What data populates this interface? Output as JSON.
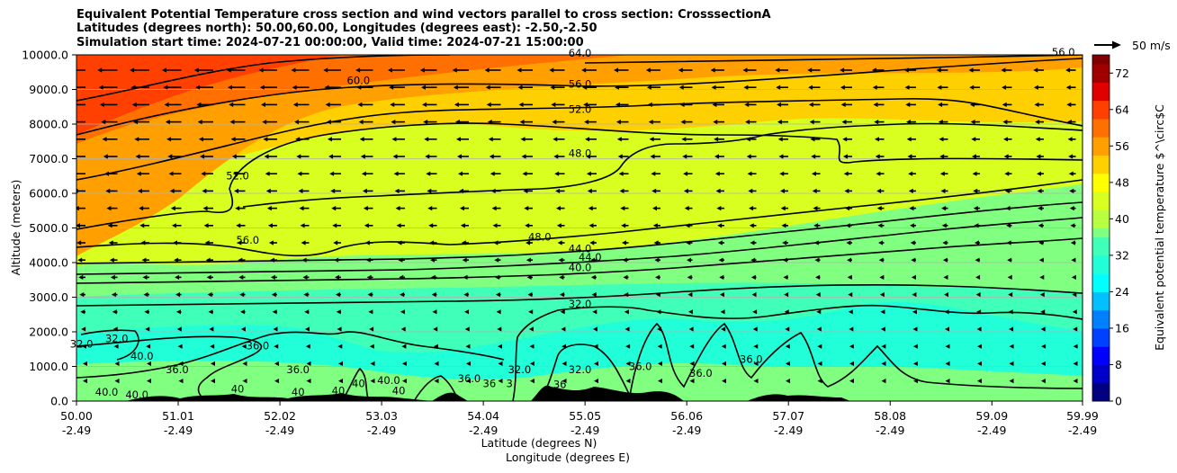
{
  "title_lines": [
    "Equivalent Potential Temperature cross section and wind vectors parallel to cross section: CrosssectionA",
    "Latitudes (degrees north): 50.00,60.00, Longitudes (degrees east): -2.50,-2.50",
    "Simulation start time: 2024-07-21 00:00:00, Valid time: 2024-07-21 15:00:00"
  ],
  "colors": {
    "scale": [
      "#000080",
      "#0000c8",
      "#0000ff",
      "#0040ff",
      "#0080ff",
      "#00c0ff",
      "#00ffff",
      "#20ffd8",
      "#40ffb8",
      "#80ff80",
      "#b8ff40",
      "#d8ff20",
      "#ffff00",
      "#ffd000",
      "#ffa000",
      "#ff7000",
      "#ff4000",
      "#e00000",
      "#a00000",
      "#800000"
    ],
    "contour": "#000000",
    "terrain": "#000000"
  },
  "chart_data": {
    "type": "contour cross section",
    "xlabel": "Latitude (degrees N)",
    "xlabel2": "Longitude (degrees E)",
    "ylabel": "Altitude (meters)",
    "xlim": [
      50.0,
      59.99
    ],
    "ylim": [
      0,
      10000
    ],
    "x_ticks": [
      {
        "lat": "50.00",
        "lon": "-2.49"
      },
      {
        "lat": "51.01",
        "lon": "-2.49"
      },
      {
        "lat": "52.02",
        "lon": "-2.49"
      },
      {
        "lat": "53.03",
        "lon": "-2.49"
      },
      {
        "lat": "54.04",
        "lon": "-2.49"
      },
      {
        "lat": "55.05",
        "lon": "-2.49"
      },
      {
        "lat": "56.06",
        "lon": "-2.49"
      },
      {
        "lat": "57.07",
        "lon": "-2.49"
      },
      {
        "lat": "58.08",
        "lon": "-2.49"
      },
      {
        "lat": "59.09",
        "lon": "-2.49"
      },
      {
        "lat": "59.99",
        "lon": "-2.49"
      }
    ],
    "y_ticks": [
      "0.0",
      "1000.0",
      "2000.0",
      "3000.0",
      "4000.0",
      "5000.0",
      "6000.0",
      "7000.0",
      "8000.0",
      "9000.0",
      "10000.0"
    ],
    "grid": "horizontal",
    "colorbar": {
      "label": "Equivalent potential temperature $^\\circ$C",
      "ticks": [
        "0",
        "8",
        "16",
        "24",
        "32",
        "40",
        "48",
        "56",
        "64",
        "72"
      ],
      "range": [
        0,
        76
      ]
    },
    "quiver_key": {
      "label": "50 m/s",
      "value": 50
    },
    "contour_labels": [
      {
        "text": "64.0",
        "lat": 55.0,
        "z": 9950
      },
      {
        "text": "60.0",
        "lat": 52.8,
        "z": 9150
      },
      {
        "text": "56.0",
        "lat": 55.0,
        "z": 9050
      },
      {
        "text": "52.0",
        "lat": 55.0,
        "z": 8330
      },
      {
        "text": "48.0",
        "lat": 55.0,
        "z": 7050
      },
      {
        "text": "52.0",
        "lat": 51.6,
        "z": 6400
      },
      {
        "text": "56.0",
        "lat": 51.7,
        "z": 4550
      },
      {
        "text": "48.0",
        "lat": 54.6,
        "z": 4630
      },
      {
        "text": "44.0",
        "lat": 55.0,
        "z": 4300
      },
      {
        "text": "44.0",
        "lat": 55.1,
        "z": 4050
      },
      {
        "text": "40.0",
        "lat": 55.0,
        "z": 3750
      },
      {
        "text": "32.0",
        "lat": 55.0,
        "z": 2700
      },
      {
        "text": "56.0",
        "lat": 59.8,
        "z": 9980
      },
      {
        "text": "32.0",
        "lat": 50.05,
        "z": 1550
      },
      {
        "text": "32.0",
        "lat": 50.4,
        "z": 1700
      },
      {
        "text": "40.0",
        "lat": 50.65,
        "z": 1200
      },
      {
        "text": "36.0",
        "lat": 51.0,
        "z": 800
      },
      {
        "text": "36.0",
        "lat": 51.8,
        "z": 1500
      },
      {
        "text": "36.0",
        "lat": 52.2,
        "z": 800
      },
      {
        "text": "40.0",
        "lat": 50.3,
        "z": 150
      },
      {
        "text": "40.0",
        "lat": 50.6,
        "z": 80
      },
      {
        "text": "40",
        "lat": 51.6,
        "z": 250
      },
      {
        "text": "40",
        "lat": 52.2,
        "z": 150
      },
      {
        "text": "40",
        "lat": 52.6,
        "z": 200
      },
      {
        "text": "40",
        "lat": 52.8,
        "z": 400
      },
      {
        "text": "40.0",
        "lat": 53.1,
        "z": 500
      },
      {
        "text": "40",
        "lat": 53.2,
        "z": 200
      },
      {
        "text": "36.0",
        "lat": 53.9,
        "z": 550
      },
      {
        "text": "36",
        "lat": 54.1,
        "z": 400
      },
      {
        "text": "3",
        "lat": 54.3,
        "z": 400
      },
      {
        "text": "32.0",
        "lat": 54.4,
        "z": 800
      },
      {
        "text": "36",
        "lat": 54.8,
        "z": 380
      },
      {
        "text": "32.0",
        "lat": 55.0,
        "z": 800
      },
      {
        "text": "36.0",
        "lat": 55.6,
        "z": 900
      },
      {
        "text": "36.0",
        "lat": 56.2,
        "z": 700
      },
      {
        "text": "36.0",
        "lat": 56.7,
        "z": 1100
      }
    ]
  }
}
